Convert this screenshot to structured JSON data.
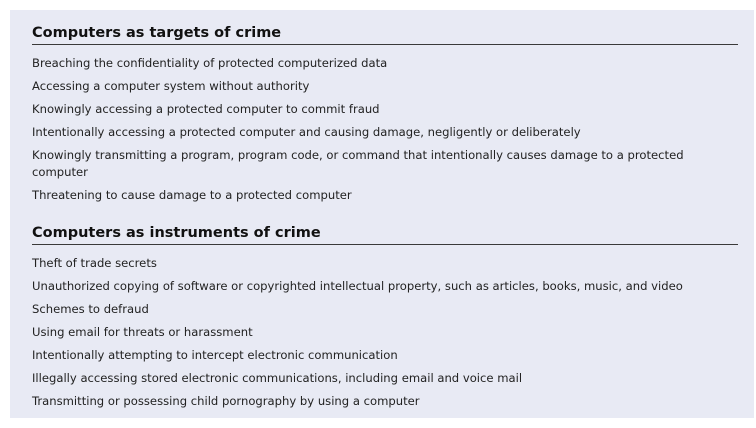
{
  "sections": [
    {
      "heading": "Computers as targets of crime",
      "items": [
        "Breaching the confidentiality of protected computerized data",
        "Accessing a computer system without authority",
        "Knowingly accessing a protected computer to commit fraud",
        "Intentionally accessing a protected computer and causing damage, negligently or deliberately",
        "Knowingly transmitting a program, program code, or command that intentionally causes damage to a protected computer",
        "Threatening to cause damage to a protected computer"
      ]
    },
    {
      "heading": "Computers as instruments of crime",
      "items": [
        "Theft of trade secrets",
        "Unauthorized copying of software or copyrighted intellectual property, such as articles, books, music, and video",
        "Schemes to defraud",
        "Using email for threats or harassment",
        "Intentionally attempting to intercept electronic communication",
        "Illegally accessing stored electronic communications, including email and voice mail",
        "Transmitting or possessing child pornography by using a computer"
      ]
    }
  ],
  "colors": {
    "panel_background": "#e8eaf4",
    "heading_text": "#111111",
    "item_text": "#222222",
    "rule": "#3a3a3a"
  }
}
